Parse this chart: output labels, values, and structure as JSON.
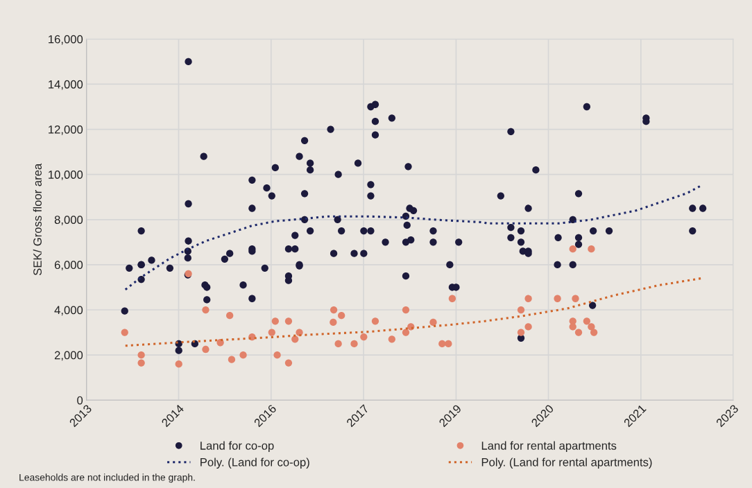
{
  "chart_data": {
    "type": "scatter",
    "ylabel": "SEK/ Gross floor area",
    "xlim": [
      "2013-04-02",
      "2023-05-26"
    ],
    "xticks": [
      {
        "value": "2013-04-02",
        "label": "2013"
      },
      {
        "value": "2014-09-12",
        "label": "2014"
      },
      {
        "value": "2016-02-24",
        "label": "2016"
      },
      {
        "value": "2017-08-07",
        "label": "2017"
      },
      {
        "value": "2019-01-19",
        "label": "2019"
      },
      {
        "value": "2020-07-01",
        "label": "2020"
      },
      {
        "value": "2021-12-13",
        "label": "2021"
      },
      {
        "value": "2023-05-26",
        "label": "2023"
      }
    ],
    "ylim": [
      0,
      16000
    ],
    "yticks": [
      {
        "value": 0,
        "label": "0"
      },
      {
        "value": 2000,
        "label": "2,000"
      },
      {
        "value": 4000,
        "label": "4,000"
      },
      {
        "value": 6000,
        "label": "6,000"
      },
      {
        "value": 8000,
        "label": "8,000"
      },
      {
        "value": 10000,
        "label": "10,000"
      },
      {
        "value": 12000,
        "label": "12,000"
      },
      {
        "value": 14000,
        "label": "14,000"
      },
      {
        "value": 16000,
        "label": "16,000"
      }
    ],
    "grid": true,
    "legend": "bottom",
    "marker": "circle",
    "annotations": [
      "Leaseholds are not included in the graph."
    ],
    "series": [
      {
        "name": "Land for co-op",
        "color": "#1c1a3c",
        "x": [
          "2014-11-07",
          "2015-02-03",
          "2016-03-19",
          "2015-11-07",
          "2016-01-30",
          "2016-02-28",
          "2014-11-07",
          "2015-11-07",
          "2014-02-10",
          "2014-11-07",
          "2014-11-04",
          "2014-11-04",
          "2015-07-02",
          "2015-06-03",
          "2015-11-07",
          "2015-11-07",
          "2013-12-03",
          "2014-02-10",
          "2014-02-10",
          "2014-04-10",
          "2014-07-24",
          "2016-01-19",
          "2014-11-04",
          "2014-02-10",
          "2015-02-10",
          "2015-02-21",
          "2015-09-17",
          "2015-02-21",
          "2015-11-07",
          "2013-11-07",
          "2014-09-13",
          "2014-09-13",
          "2014-12-14",
          "2016-09-03",
          "2016-08-04",
          "2016-10-05",
          "2016-10-05",
          "2017-01-30",
          "2017-03-15",
          "2017-07-06",
          "2017-09-17",
          "2017-10-13",
          "2017-10-13",
          "2017-10-13",
          "2018-01-16",
          "2018-04-20",
          "2016-09-03",
          "2017-09-17",
          "2017-09-17",
          "2016-09-03",
          "2016-10-05",
          "2016-07-10",
          "2016-06-03",
          "2016-07-10",
          "2016-08-04",
          "2016-08-04",
          "2016-06-03",
          "2016-06-03",
          "2017-03-11",
          "2017-04-02",
          "2017-02-17",
          "2017-06-14",
          "2017-08-08",
          "2017-08-08",
          "2017-09-17",
          "2017-12-10",
          "2018-04-06",
          "2018-04-28",
          "2018-05-20",
          "2018-04-13",
          "2018-04-06",
          "2018-05-05",
          "2018-04-06",
          "2018-09-10",
          "2018-09-10",
          "2019-02-03",
          "2018-12-14",
          "2018-12-28",
          "2019-01-19",
          "2019-11-29",
          "2020-04-20",
          "2019-10-02",
          "2020-03-08",
          "2021-02-06",
          "2022-01-12",
          "2022-01-12",
          "2020-12-21",
          "2020-11-18",
          "2022-10-05",
          "2022-12-03",
          "2022-10-05",
          "2019-11-29",
          "2020-01-26",
          "2019-11-29",
          "2020-01-26",
          "2020-02-06",
          "2020-03-08",
          "2020-03-08",
          "2020-08-26",
          "2020-12-21",
          "2020-12-21",
          "2021-03-15",
          "2021-06-14",
          "2020-08-22",
          "2020-11-18",
          "2021-03-11",
          "2020-01-26"
        ],
        "values": [
          15000,
          10800,
          10300,
          9750,
          9400,
          9050,
          8700,
          8500,
          7500,
          7050,
          6600,
          6300,
          6500,
          6250,
          6700,
          6600,
          5850,
          6000,
          6000,
          6200,
          5850,
          5850,
          5550,
          5350,
          5100,
          5000,
          5100,
          4450,
          4500,
          3950,
          2500,
          2200,
          2500,
          11500,
          10800,
          10500,
          10200,
          12000,
          10000,
          10500,
          13000,
          13100,
          12350,
          11750,
          12500,
          10350,
          9150,
          9550,
          9050,
          8000,
          7500,
          7300,
          6700,
          6700,
          6000,
          5950,
          5500,
          5300,
          8000,
          7500,
          6500,
          6500,
          6500,
          7500,
          7500,
          7000,
          8150,
          8500,
          8400,
          7750,
          7000,
          7100,
          5500,
          7500,
          7000,
          7000,
          6000,
          5000,
          5000,
          11900,
          10200,
          9050,
          8500,
          13000,
          12500,
          12350,
          9150,
          8000,
          8500,
          8500,
          7500,
          7650,
          7500,
          7200,
          7000,
          6600,
          6600,
          6500,
          7200,
          7200,
          6900,
          7500,
          7500,
          6000,
          6000,
          4200,
          2750
        ]
      },
      {
        "name": "Land for rental apartments",
        "color": "#e2826a",
        "x": [
          "2014-11-07",
          "2015-02-14",
          "2015-07-02",
          "2016-03-19",
          "2016-02-28",
          "2013-11-07",
          "2014-02-10",
          "2014-02-10",
          "2014-09-13",
          "2015-02-14",
          "2015-05-09",
          "2015-07-13",
          "2015-09-17",
          "2015-11-07",
          "2016-03-30",
          "2016-06-03",
          "2016-06-03",
          "2016-08-04",
          "2016-07-10",
          "2017-02-17",
          "2017-02-14",
          "2017-04-02",
          "2017-03-15",
          "2017-06-14",
          "2017-08-08",
          "2017-10-13",
          "2018-01-16",
          "2018-04-06",
          "2018-05-05",
          "2018-04-06",
          "2018-09-10",
          "2018-10-31",
          "2018-12-06",
          "2018-12-28",
          "2020-03-08",
          "2020-08-22",
          "2020-12-03",
          "2020-01-26",
          "2020-11-18",
          "2021-03-04",
          "2020-03-08",
          "2020-01-26",
          "2020-11-18",
          "2020-11-18",
          "2020-12-21",
          "2021-02-06",
          "2021-03-04",
          "2021-03-19"
        ],
        "values": [
          5600,
          4000,
          3750,
          3500,
          3000,
          3000,
          2000,
          1650,
          1600,
          2250,
          2550,
          1800,
          2000,
          2800,
          2000,
          3500,
          1650,
          3000,
          2700,
          4000,
          3450,
          3750,
          2500,
          2500,
          2800,
          3500,
          2700,
          4000,
          3250,
          3000,
          3450,
          2500,
          2500,
          4500,
          4500,
          4500,
          4500,
          4000,
          6700,
          6700,
          3250,
          3000,
          3500,
          3250,
          3000,
          3500,
          3250,
          3000
        ]
      },
      {
        "name": "Poly. (Land for co-op)",
        "type": "line",
        "color": "#1f2a6b",
        "marker": "none",
        "line_style": "dotted",
        "x": [
          "2013-11-11",
          "2014-02-10",
          "2014-07-24",
          "2014-11-04",
          "2015-02-14",
          "2015-07-02",
          "2015-11-07",
          "2016-03-19",
          "2016-09-03",
          "2017-01-12",
          "2017-09-06",
          "2018-04-10",
          "2018-10-02",
          "2019-06-22",
          "2019-07-17",
          "2020-08-26",
          "2021-02-25",
          "2021-11-15",
          "2022-09-03",
          "2022-11-29"
        ],
        "values": [
          4900,
          5450,
          6280,
          6690,
          7050,
          7400,
          7730,
          7930,
          8040,
          8140,
          8140,
          8090,
          7990,
          7880,
          7830,
          7830,
          7990,
          8400,
          9170,
          9530
        ]
      },
      {
        "name": "Poly. (Land for rental apartments)",
        "type": "line",
        "color": "#d0652a",
        "marker": "none",
        "line_style": "dotted",
        "x": [
          "2013-11-11",
          "2014-09-10",
          "2016-02-28",
          "2016-09-03",
          "2017-09-06",
          "2018-04-20",
          "2018-12-17",
          "2019-06-22",
          "2020-01-26",
          "2020-10-16",
          "2021-07-06",
          "2022-03-26",
          "2022-11-25"
        ],
        "values": [
          2410,
          2560,
          2790,
          2890,
          3030,
          3180,
          3340,
          3490,
          3720,
          4060,
          4630,
          5090,
          5400
        ]
      }
    ]
  }
}
